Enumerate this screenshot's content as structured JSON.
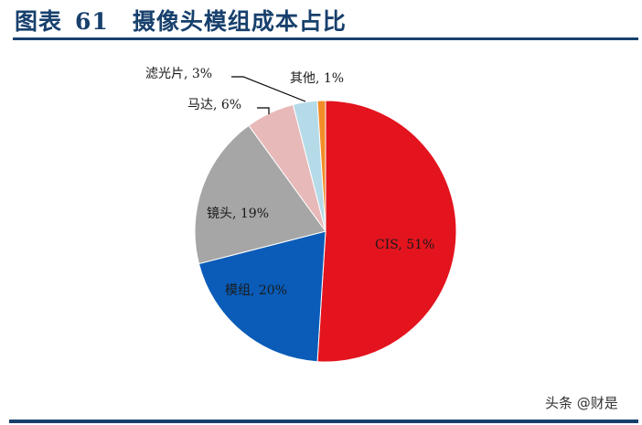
{
  "header": {
    "figure_label": "图表",
    "figure_number": "61",
    "title": "摄像头模组成本占比"
  },
  "watermark": "头条 @财是",
  "colors": {
    "title": "#17406d",
    "rule": "#17406d"
  },
  "chart_data": {
    "type": "pie",
    "title": "摄像头模组成本占比",
    "start_angle": "12 o'clock, clockwise",
    "slices": [
      {
        "label": "CIS",
        "value": 51,
        "display": "CIS, 51%",
        "color": "#e3141e"
      },
      {
        "label": "模组",
        "value": 20,
        "display": "模组, 20%",
        "color": "#0a5cb8"
      },
      {
        "label": "镜头",
        "value": 19,
        "display": "镜头, 19%",
        "color": "#a6a6a6"
      },
      {
        "label": "马达",
        "value": 6,
        "display": "马达, 6%",
        "color": "#e8b9b9"
      },
      {
        "label": "滤光片",
        "value": 3,
        "display": "滤光片, 3%",
        "color": "#b5dbe8"
      },
      {
        "label": "其他",
        "value": 1,
        "display": "其他, 1%",
        "color": "#f28c28"
      }
    ],
    "legend": "none (data labels on slices)"
  }
}
